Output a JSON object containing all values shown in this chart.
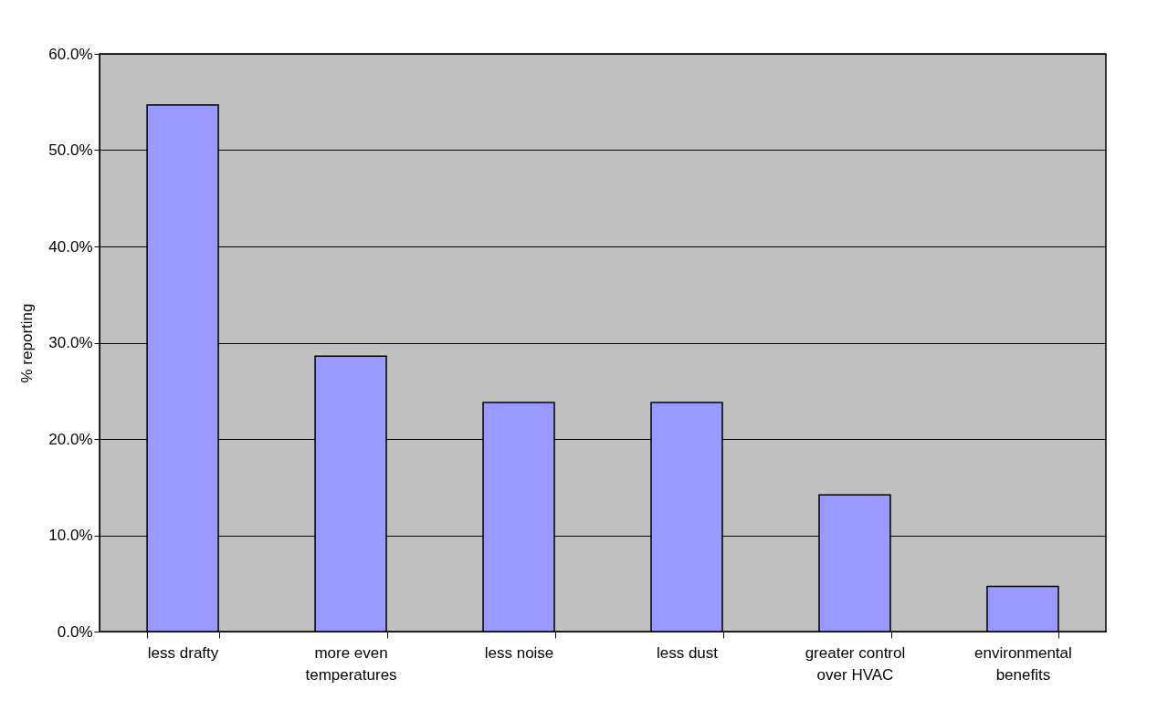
{
  "chart_data": {
    "type": "bar",
    "ylabel": "% reporting",
    "categories": [
      "less drafty",
      "more even temperatures",
      "less noise",
      "less dust",
      "greater control over HVAC",
      "environmental benefits"
    ],
    "values": [
      54.7,
      28.6,
      23.8,
      23.8,
      14.2,
      4.7
    ],
    "color": "#9999ff",
    "ylim": [
      0,
      60
    ],
    "yticks": [
      {
        "value": 0,
        "label": "0.0%"
      },
      {
        "value": 10,
        "label": "10.0%"
      },
      {
        "value": 20,
        "label": "20.0%"
      },
      {
        "value": 30,
        "label": "30.0%"
      },
      {
        "value": 40,
        "label": "40.0%"
      },
      {
        "value": 50,
        "label": "50.0%"
      },
      {
        "value": 60,
        "label": "60.0%"
      }
    ],
    "grid": "y"
  }
}
